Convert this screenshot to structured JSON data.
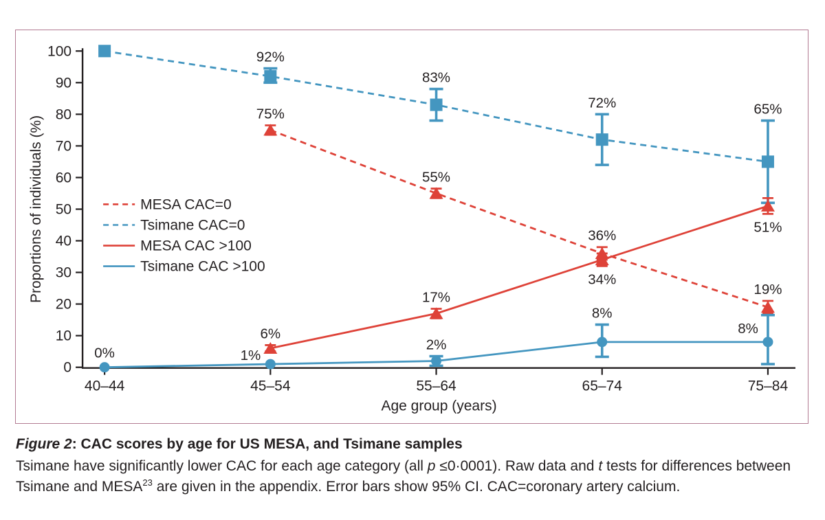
{
  "colors": {
    "mesa_red": "#de4238",
    "tsimane_blue": "#4496c0",
    "axis_ink": "#231f20",
    "panel_border_pink": "#b27a92",
    "background": "#ffffff"
  },
  "chart_data": {
    "type": "line",
    "title": "",
    "xlabel": "Age group (years)",
    "ylabel": "Proportions of individuals (%)",
    "ylim": [
      0,
      100
    ],
    "yticks": [
      0,
      10,
      20,
      30,
      40,
      50,
      60,
      70,
      80,
      90,
      100
    ],
    "categories": [
      "40–44",
      "45–54",
      "55–64",
      "65–74",
      "75–84"
    ],
    "grid": false,
    "legend_position": "inside-left-middle",
    "error_bars": "95% CI",
    "series": [
      {
        "name": "MESA CAC=0",
        "color": "#de4238",
        "line_style": "dashed",
        "marker": "triangle",
        "x_indices": [
          1,
          2,
          3,
          4
        ],
        "values": [
          75,
          55,
          36,
          19
        ],
        "ci_low": [
          1.5,
          1.5,
          2,
          2
        ],
        "ci_high": [
          1.5,
          1.5,
          2,
          2
        ],
        "point_labels": [
          "75%",
          "55%",
          "36%",
          "19%"
        ],
        "label_positions": [
          "above",
          "above",
          "above",
          "above"
        ]
      },
      {
        "name": "Tsimane CAC=0",
        "color": "#4496c0",
        "line_style": "dashed",
        "marker": "square",
        "x_indices": [
          0,
          1,
          2,
          3,
          4
        ],
        "values": [
          100,
          92,
          83,
          72,
          65
        ],
        "ci_low": [
          0,
          2,
          5,
          8,
          13
        ],
        "ci_high": [
          0,
          2.5,
          5,
          8,
          13
        ],
        "point_labels": [
          null,
          "92%",
          "83%",
          "72%",
          "65%"
        ],
        "label_positions": [
          null,
          "above",
          "above",
          "above",
          "above"
        ]
      },
      {
        "name": "MESA CAC >100",
        "color": "#de4238",
        "line_style": "solid",
        "marker": "triangle",
        "x_indices": [
          1,
          2,
          3,
          4
        ],
        "values": [
          6,
          17,
          34,
          51
        ],
        "ci_low": [
          1,
          1.5,
          2,
          2.5
        ],
        "ci_high": [
          1,
          1.5,
          2,
          2.5
        ],
        "point_labels": [
          "6%",
          "17%",
          "34%",
          "51%"
        ],
        "label_positions": [
          "above",
          "above",
          "below",
          "below"
        ]
      },
      {
        "name": "Tsimane CAC >100",
        "color": "#4496c0",
        "line_style": "solid",
        "marker": "circle",
        "x_indices": [
          0,
          1,
          2,
          3,
          4
        ],
        "values": [
          0,
          1,
          2,
          8,
          8
        ],
        "ci_low": [
          0,
          0,
          1.5,
          4.7,
          7
        ],
        "ci_high": [
          0,
          0,
          1.5,
          5.5,
          8.5
        ],
        "point_labels": [
          "0%",
          "1%",
          "2%",
          "8%",
          "8%"
        ],
        "label_positions": [
          "above",
          "left",
          "above",
          "above",
          "above-left"
        ]
      }
    ]
  },
  "caption": {
    "figure_label": "Figure 2",
    "separator": ": ",
    "title": "CAC scores by age for US MESA, and Tsimane samples",
    "body_1": "Tsimane have significantly lower CAC for each age category (all ",
    "p_italic": "p",
    "body_2": " ≤0·0001). Raw data and ",
    "t_italic": "t",
    "body_3": " tests for differences between Tsimane and MESA",
    "ref_superscript": "23",
    "body_4": " are given in the appendix. Error bars show 95% CI. CAC=coronary artery calcium."
  }
}
